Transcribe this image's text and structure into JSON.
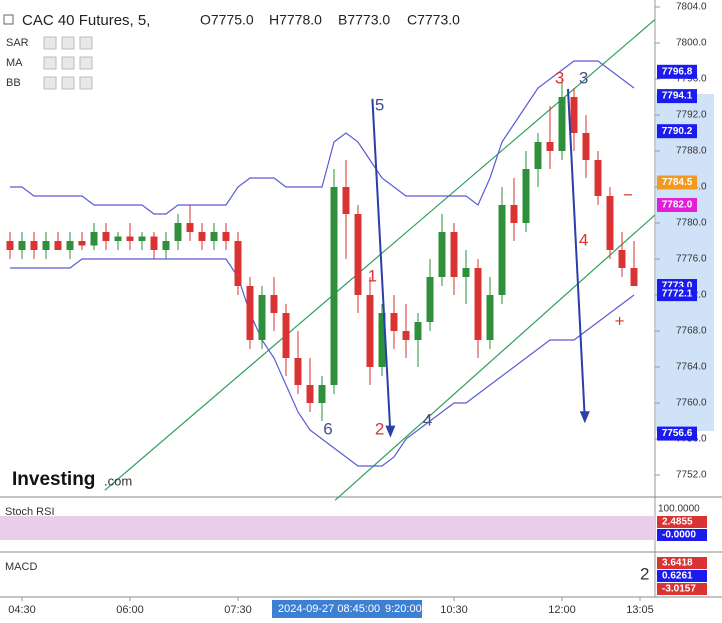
{
  "header": {
    "symbol": "CAC 40 Futures, 5,",
    "ohlc": [
      "O7775.0",
      "H7778.0",
      "B7773.0",
      "C7773.0"
    ]
  },
  "indicators": [
    "SAR",
    "MA",
    "BB"
  ],
  "logo": {
    "brand": "Investing",
    "suffix": ".com"
  },
  "chart_data": {
    "type": "candlestick",
    "open": [
      7778,
      7777,
      7778,
      7777,
      7778,
      7777,
      7778,
      7777.5,
      7779,
      7778,
      7778.5,
      7778,
      7778.5,
      7777,
      7778,
      7780,
      7779,
      7778,
      7779,
      7778,
      7773,
      7767,
      7772,
      7770,
      7765,
      7762,
      7760,
      7762,
      7784,
      7781,
      7772,
      7764,
      7770,
      7768,
      7767,
      7769,
      7774,
      7779,
      7774,
      7775,
      7767,
      7772,
      7782,
      7780,
      7786,
      7789,
      7788,
      7794,
      7790,
      7787,
      7783,
      7777,
      7775
    ],
    "high": [
      7779,
      7779,
      7779,
      7779,
      7779,
      7779,
      7779,
      7780,
      7780,
      7779,
      7780,
      7779,
      7779,
      7779,
      7781,
      7782,
      7780,
      7780,
      7780,
      7779,
      7774,
      7773,
      7774,
      7771,
      7768,
      7765,
      7763,
      7786,
      7787,
      7782,
      7774,
      7771,
      7772,
      7771,
      7770,
      7776,
      7781,
      7780,
      7777,
      7776,
      7774,
      7784,
      7785,
      7788,
      7790,
      7793,
      7796,
      7795,
      7792,
      7788,
      7784,
      7779,
      7778
    ],
    "low": [
      7776,
      7776,
      7776,
      7776,
      7777,
      7776,
      7777,
      7777,
      7777,
      7777,
      7777,
      7777,
      7776,
      7776,
      7777,
      7778,
      7777,
      7777,
      7777,
      7772,
      7766,
      7766,
      7768,
      7763,
      7761,
      7759,
      7758,
      7761,
      7776,
      7770,
      7762,
      7763,
      7766,
      7765,
      7764,
      7768,
      7773,
      7772,
      7771,
      7765,
      7766,
      7771,
      7778,
      7779,
      7784,
      7786,
      7787,
      7788,
      7785,
      7782,
      7776,
      7774,
      7773
    ],
    "close": [
      7777,
      7778,
      7777,
      7778,
      7777,
      7778,
      7777.5,
      7779,
      7778,
      7778.5,
      7778,
      7778.5,
      7777,
      7778,
      7780,
      7779,
      7778,
      7779,
      7778,
      7773,
      7767,
      7772,
      7770,
      7765,
      7762,
      7760,
      7762,
      7784,
      7781,
      7772,
      7764,
      7770,
      7768,
      7767,
      7769,
      7774,
      7779,
      7774,
      7775,
      7767,
      7772,
      7782,
      7780,
      7786,
      7789,
      7788,
      7794,
      7790,
      7787,
      7783,
      7777,
      7775,
      7773
    ],
    "up_color": "#2f8f3a",
    "down_color": "#d93333",
    "bands": [
      {
        "name": "BB",
        "color": "#5b5bd6",
        "upper": [
          7784,
          7784,
          7783,
          7783,
          7783,
          7783,
          7783,
          7782,
          7782,
          7782,
          7782,
          7782,
          7781,
          7781,
          7782,
          7782,
          7782,
          7782,
          7782,
          7784,
          7785,
          7785,
          7785,
          7784,
          7784,
          7784,
          7784,
          7789,
          7790,
          7789,
          7787,
          7785,
          7784,
          7783,
          7783,
          7783,
          7783,
          7783,
          7783,
          7782,
          7785,
          7789,
          7791,
          7793,
          7795,
          7796,
          7797,
          7798,
          7798,
          7798,
          7797,
          7796,
          7795
        ],
        "lower": [
          7775,
          7775,
          7775,
          7775,
          7775,
          7775,
          7776,
          7776,
          7776,
          7776,
          7776,
          7776,
          7776,
          7776,
          7776,
          7776,
          7776,
          7776,
          7776,
          7774,
          7770,
          7767,
          7765,
          7762,
          7759,
          7757,
          7756,
          7755,
          7754,
          7753,
          7753,
          7753,
          7754,
          7756,
          7757,
          7758,
          7759,
          7760,
          7760,
          7761,
          7762,
          7763,
          7764,
          7765,
          7766,
          7767,
          7767,
          7767,
          7768,
          7769,
          7770,
          7771,
          7772
        ]
      }
    ],
    "trendlines": [
      {
        "color": "#2ca05a",
        "x": [
          7.9,
          53.75
        ],
        "y": [
          7750.3,
          7802.6
        ]
      },
      {
        "color": "#2ca05a",
        "x": [
          27.1,
          53.75
        ],
        "y": [
          7749.2,
          7780.9
        ]
      }
    ],
    "arrows": [
      {
        "color": "#2b3fa8",
        "x": [
          30.2,
          31.7
        ],
        "y": [
          7793.8,
          7756.6
        ]
      },
      {
        "color": "#2b3fa8",
        "x": [
          46.5,
          47.9
        ],
        "y": [
          7794.9,
          7758.2
        ]
      }
    ],
    "annotations": [
      {
        "text": "1",
        "color": "#d93333",
        "x": 30.2,
        "y": 7774
      },
      {
        "text": "2",
        "color": "#d93333",
        "x": 30.8,
        "y": 7757
      },
      {
        "text": "3",
        "color": "#d93333",
        "x": 45.8,
        "y": 7796
      },
      {
        "text": "3",
        "color": "#4a4f8a",
        "x": 47.8,
        "y": 7796
      },
      {
        "text": "4",
        "color": "#d93333",
        "x": 47.8,
        "y": 7778
      },
      {
        "text": "4",
        "color": "#4a4f8a",
        "x": 34.8,
        "y": 7758
      },
      {
        "text": "5",
        "color": "#4a4f8a",
        "x": 30.8,
        "y": 7793
      },
      {
        "text": "6",
        "color": "#4a4f8a",
        "x": 26.5,
        "y": 7757
      },
      {
        "text": "−",
        "color": "#d93333",
        "x": 51.5,
        "y": 7783
      },
      {
        "text": "+",
        "color": "#d93333",
        "x": 50.8,
        "y": 7769
      }
    ],
    "ylim": [
      7751.3,
      7804.8
    ],
    "yticks": [
      {
        "value": 7752,
        "label": "7752.0"
      },
      {
        "value": 7756,
        "label": "7756.0"
      },
      {
        "value": 7760,
        "label": "7760.0"
      },
      {
        "value": 7764,
        "label": "7764.0"
      },
      {
        "value": 7768,
        "label": "7768.0"
      },
      {
        "value": 7772,
        "label": "7772.0"
      },
      {
        "value": 7776,
        "label": "7776.0"
      },
      {
        "value": 7780,
        "label": "7780.0"
      },
      {
        "value": 7784,
        "label": "7784.0"
      },
      {
        "value": 7788,
        "label": "7788.0"
      },
      {
        "value": 7792,
        "label": "7792.0"
      },
      {
        "value": 7796,
        "label": "7796.0"
      },
      {
        "value": 7800,
        "label": "7800.0"
      },
      {
        "value": 7804,
        "label": "7804.0"
      }
    ],
    "xticks": [
      {
        "value": 1,
        "label": "04:30"
      },
      {
        "value": 10,
        "label": "06:00"
      },
      {
        "value": 19,
        "label": "07:30"
      },
      {
        "value": 37,
        "label": "10:30"
      },
      {
        "value": 46,
        "label": "12:00"
      },
      {
        "value": 52.5,
        "label": "13:05"
      }
    ],
    "price_labels": [
      {
        "value": 7796.8,
        "label": "7796.8",
        "color": "#1b1bf0"
      },
      {
        "value": 7794.1,
        "label": "7794.1",
        "color": "#1b1bf0"
      },
      {
        "value": 7790.2,
        "label": "7790.2",
        "color": "#1b1bf0"
      },
      {
        "value": 7784.5,
        "label": "7784.5",
        "color": "#f39a1e"
      },
      {
        "value": 7782,
        "label": "7782.0",
        "color": "#e01fd6"
      },
      {
        "value": 7773,
        "label": "7773.0",
        "color": "#1b1bf0"
      },
      {
        "value": 7772.1,
        "label": "7772.1",
        "color": "#1b1bf0"
      },
      {
        "value": 7756.6,
        "label": "7756.6",
        "color": "#1b1bf0"
      }
    ],
    "crosshair": {
      "date": "2024-09-27 08:45:00",
      "time": "9:20:00"
    }
  },
  "panels": [
    {
      "name": "Stoch RSI",
      "tick": "100.0000",
      "labels": [
        {
          "text": "2.4855",
          "color": "#d93333"
        },
        {
          "text": "-0.0000",
          "color": "#1b1bf0"
        }
      ]
    },
    {
      "name": "MACD",
      "tick": "2",
      "labels": [
        {
          "text": "3.6418",
          "color": "#d93333"
        },
        {
          "text": "0.6261",
          "color": "#1b1bf0"
        },
        {
          "text": "-3.0157",
          "color": "#d93333"
        }
      ]
    }
  ]
}
